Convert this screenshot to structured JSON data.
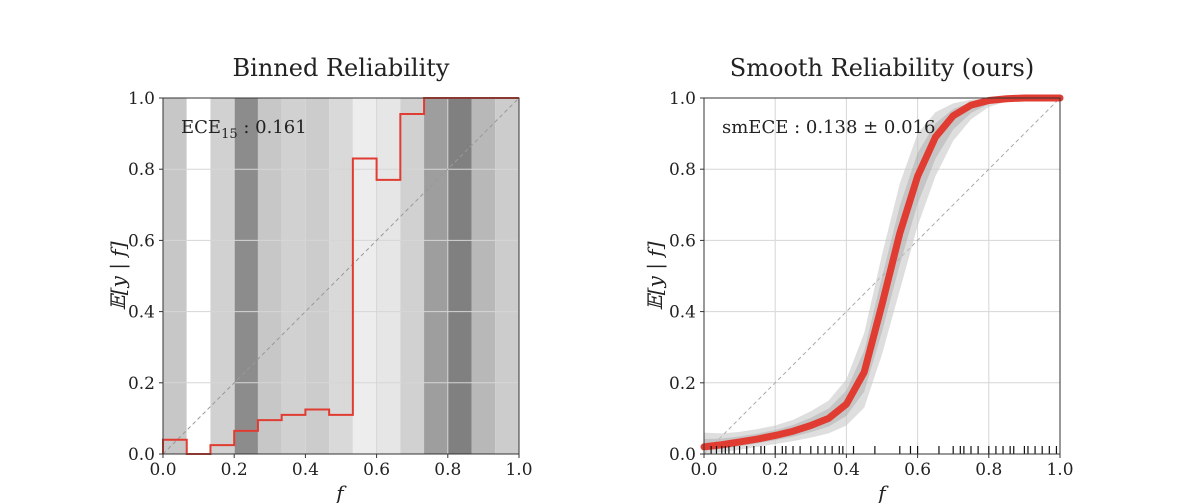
{
  "chart_data": [
    {
      "type": "step",
      "title": "Binned Reliability",
      "xlabel": "f",
      "ylabel": "𝔼[y | f]",
      "xlim": [
        0,
        1
      ],
      "ylim": [
        0,
        1
      ],
      "grid": true,
      "xticks": [
        "0.0",
        "0.2",
        "0.4",
        "0.6",
        "0.8",
        "1.0"
      ],
      "yticks": [
        "0.0",
        "0.2",
        "0.4",
        "0.6",
        "0.8",
        "1.0"
      ],
      "annotation": {
        "label": "ECE",
        "subscript": "15",
        "value": " : 0.161"
      },
      "num_bins": 15,
      "bin_values": [
        0.04,
        0.0,
        0.025,
        0.065,
        0.095,
        0.11,
        0.125,
        0.11,
        0.83,
        0.77,
        0.955,
        1.0,
        1.0,
        1.0,
        1.0
      ],
      "bin_shade": [
        0.78,
        1.0,
        0.82,
        0.55,
        0.78,
        0.82,
        0.8,
        0.85,
        0.93,
        0.9,
        0.82,
        0.62,
        0.5,
        0.72,
        0.8
      ],
      "step_color": "#e03c31",
      "diagonal": true
    },
    {
      "type": "line",
      "title": "Smooth Reliability (ours)",
      "xlabel": "f",
      "ylabel": "𝔼[y | f]",
      "xlim": [
        0,
        1
      ],
      "ylim": [
        0,
        1
      ],
      "grid": true,
      "xticks": [
        "0.0",
        "0.2",
        "0.4",
        "0.6",
        "0.8",
        "1.0"
      ],
      "yticks": [
        "0.0",
        "0.2",
        "0.4",
        "0.6",
        "0.8",
        "1.0"
      ],
      "annotation": {
        "text": "smECE : 0.138 ± 0.016"
      },
      "curve": {
        "x": [
          0.0,
          0.05,
          0.1,
          0.15,
          0.2,
          0.25,
          0.3,
          0.35,
          0.4,
          0.45,
          0.5,
          0.55,
          0.6,
          0.65,
          0.7,
          0.75,
          0.8,
          0.85,
          0.9,
          0.95,
          1.0
        ],
        "y": [
          0.02,
          0.026,
          0.034,
          0.042,
          0.052,
          0.064,
          0.08,
          0.1,
          0.14,
          0.23,
          0.42,
          0.62,
          0.78,
          0.89,
          0.95,
          0.98,
          0.993,
          0.998,
          1.0,
          1.0,
          1.0
        ],
        "lower": [
          0.0,
          0.005,
          0.012,
          0.02,
          0.028,
          0.036,
          0.046,
          0.058,
          0.08,
          0.13,
          0.28,
          0.46,
          0.64,
          0.78,
          0.88,
          0.94,
          0.975,
          0.99,
          0.997,
          1.0,
          1.0
        ],
        "upper": [
          0.06,
          0.058,
          0.062,
          0.07,
          0.08,
          0.096,
          0.12,
          0.15,
          0.21,
          0.34,
          0.56,
          0.76,
          0.9,
          0.96,
          0.985,
          0.995,
          1.0,
          1.0,
          1.0,
          1.0,
          1.0
        ],
        "color": "#e03c31"
      },
      "rug": [
        0.02,
        0.035,
        0.05,
        0.06,
        0.07,
        0.085,
        0.1,
        0.12,
        0.14,
        0.16,
        0.17,
        0.2,
        0.22,
        0.23,
        0.25,
        0.27,
        0.3,
        0.32,
        0.34,
        0.36,
        0.38,
        0.39,
        0.42,
        0.48,
        0.55,
        0.58,
        0.6,
        0.66,
        0.7,
        0.72,
        0.73,
        0.75,
        0.77,
        0.8,
        0.82,
        0.84,
        0.86,
        0.87,
        0.9,
        0.91,
        0.93,
        0.95,
        0.97,
        0.99
      ],
      "diagonal": true
    }
  ]
}
